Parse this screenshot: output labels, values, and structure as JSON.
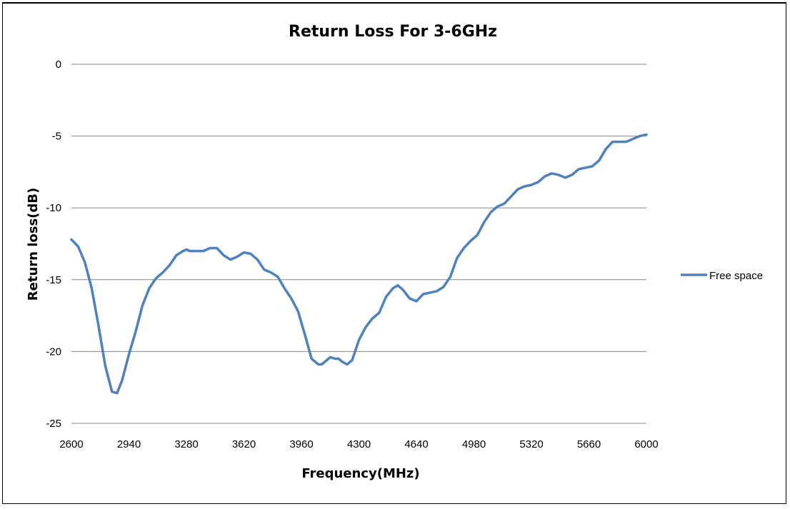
{
  "chart_data": {
    "type": "line",
    "title": "Return Loss For 3-6GHz",
    "xlabel": "Frequency(MHz)",
    "ylabel": "Return loss(dB)",
    "xlim": [
      2600,
      6000
    ],
    "ylim": [
      -25,
      0
    ],
    "x_ticks": [
      2600,
      2940,
      3280,
      3620,
      3960,
      4300,
      4640,
      4980,
      5320,
      5660,
      6000
    ],
    "y_ticks": [
      0,
      -5,
      -10,
      -15,
      -20,
      -25
    ],
    "grid": "horizontal",
    "legend_position": "right",
    "series": [
      {
        "name": "Free space",
        "color": "#4f81bd",
        "x": [
          2600,
          2640,
          2680,
          2720,
          2760,
          2800,
          2840,
          2870,
          2900,
          2940,
          2980,
          3020,
          3060,
          3100,
          3140,
          3180,
          3220,
          3260,
          3280,
          3300,
          3340,
          3380,
          3420,
          3460,
          3500,
          3540,
          3580,
          3620,
          3660,
          3700,
          3740,
          3780,
          3820,
          3860,
          3900,
          3940,
          3980,
          4020,
          4060,
          4080,
          4100,
          4130,
          4160,
          4180,
          4200,
          4230,
          4260,
          4300,
          4340,
          4380,
          4420,
          4460,
          4500,
          4530,
          4560,
          4600,
          4640,
          4680,
          4720,
          4760,
          4800,
          4840,
          4880,
          4920,
          4960,
          5000,
          5040,
          5080,
          5120,
          5160,
          5200,
          5240,
          5280,
          5320,
          5360,
          5400,
          5440,
          5480,
          5520,
          5560,
          5600,
          5640,
          5680,
          5720,
          5760,
          5800,
          5840,
          5880,
          5920,
          5960,
          6000
        ],
        "values": [
          -12.2,
          -12.7,
          -13.8,
          -15.6,
          -18.2,
          -21.0,
          -22.8,
          -22.9,
          -22.0,
          -20.2,
          -18.6,
          -16.8,
          -15.6,
          -14.9,
          -14.5,
          -14.0,
          -13.3,
          -13.0,
          -12.9,
          -13.0,
          -13.0,
          -13.0,
          -12.8,
          -12.8,
          -13.3,
          -13.6,
          -13.4,
          -13.1,
          -13.2,
          -13.6,
          -14.3,
          -14.5,
          -14.8,
          -15.6,
          -16.3,
          -17.2,
          -18.8,
          -20.5,
          -20.9,
          -20.9,
          -20.7,
          -20.4,
          -20.5,
          -20.5,
          -20.7,
          -20.9,
          -20.6,
          -19.2,
          -18.3,
          -17.7,
          -17.3,
          -16.2,
          -15.6,
          -15.4,
          -15.7,
          -16.3,
          -16.5,
          -16.0,
          -15.9,
          -15.8,
          -15.5,
          -14.8,
          -13.5,
          -12.8,
          -12.3,
          -11.9,
          -11.0,
          -10.3,
          -9.9,
          -9.7,
          -9.2,
          -8.7,
          -8.5,
          -8.4,
          -8.2,
          -7.8,
          -7.6,
          -7.7,
          -7.9,
          -7.7,
          -7.3,
          -7.2,
          -7.1,
          -6.7,
          -5.9,
          -5.4,
          -5.4,
          -5.4,
          -5.2,
          -5.0,
          -4.9
        ]
      }
    ]
  }
}
